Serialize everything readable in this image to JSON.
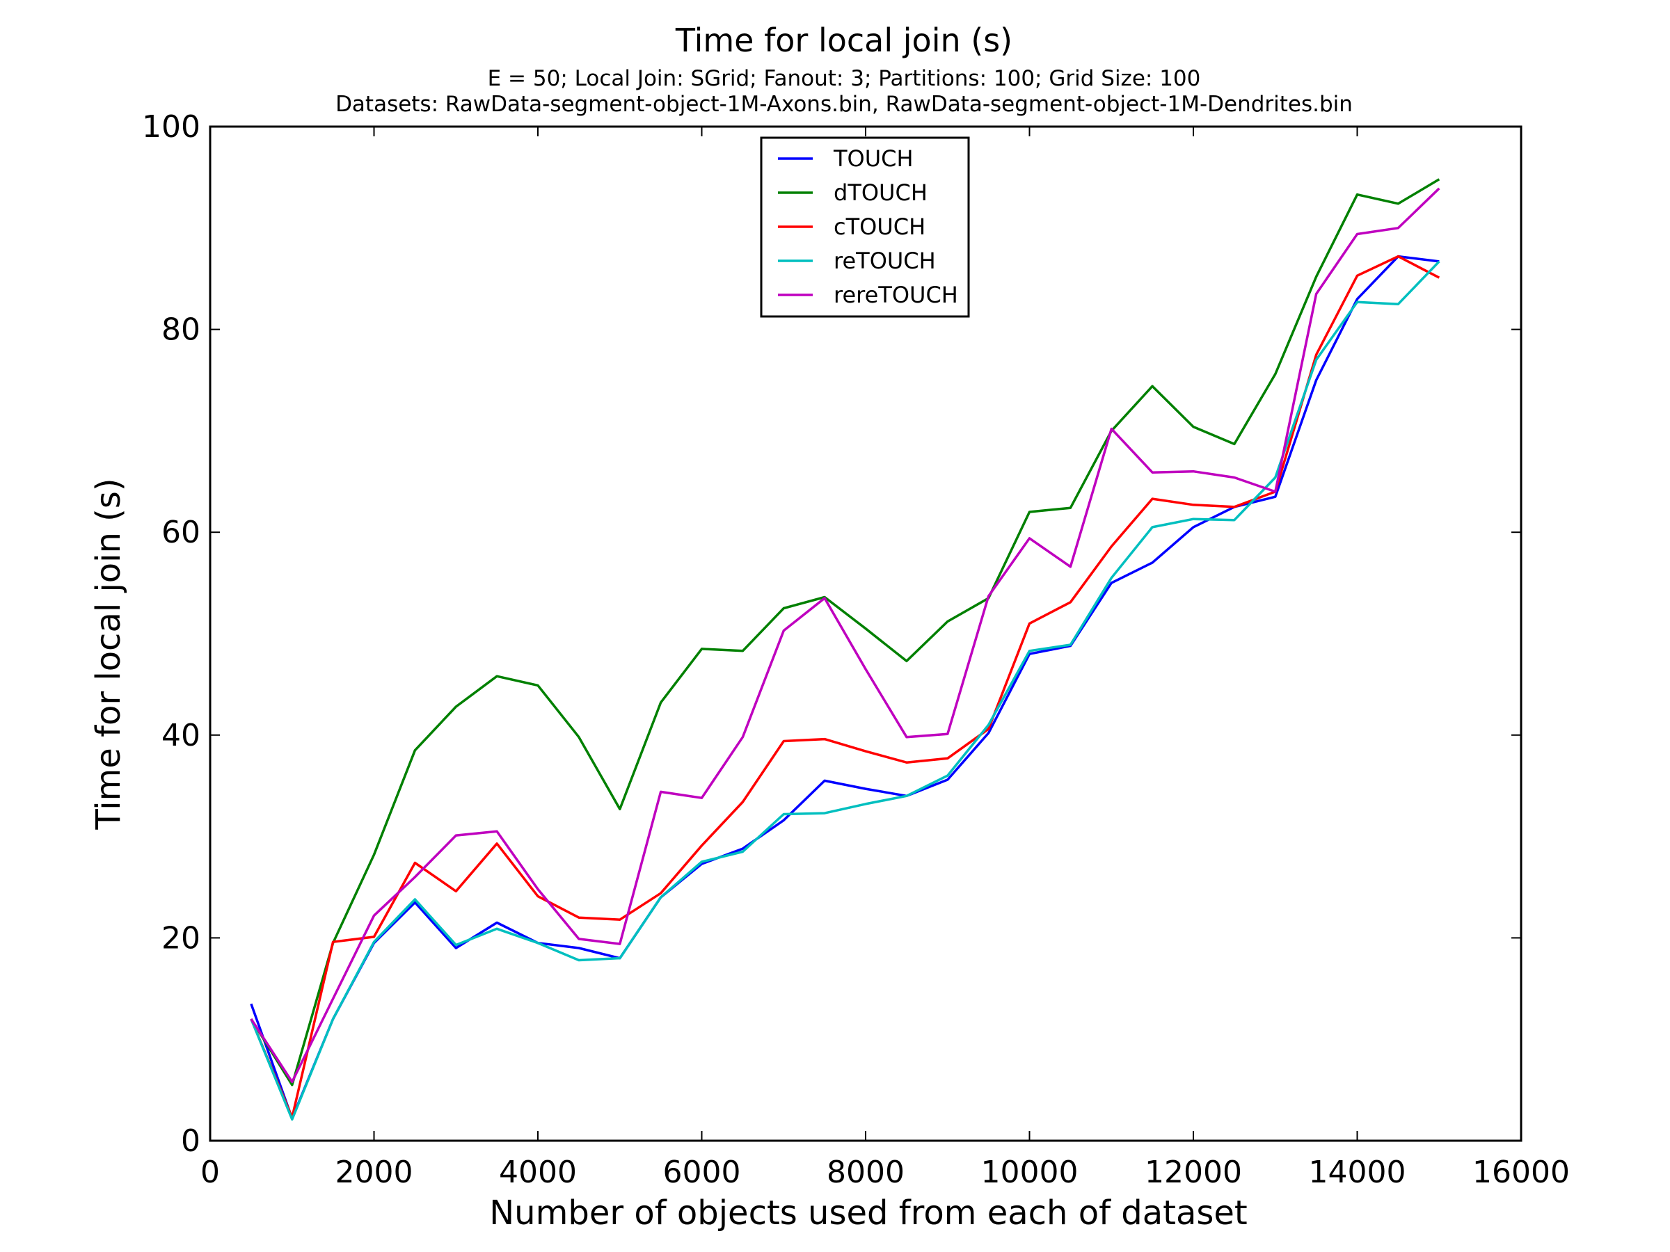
{
  "chart_data": {
    "type": "line",
    "title": "Time for local join (s)",
    "subtitle_lines": [
      "E = 50; Local Join: SGrid; Fanout: 3; Partitions: 100; Grid Size: 100",
      "Datasets: RawData-segment-object-1M-Axons.bin, RawData-segment-object-1M-Dendrites.bin"
    ],
    "xlabel": "Number of objects used from each of dataset",
    "ylabel": "Time for local join (s)",
    "xlim": [
      0,
      16000
    ],
    "ylim": [
      0,
      100
    ],
    "xticks": [
      0,
      2000,
      4000,
      6000,
      8000,
      10000,
      12000,
      14000,
      16000
    ],
    "yticks": [
      0,
      20,
      40,
      60,
      80,
      100
    ],
    "grid": false,
    "legend_position": "top-center",
    "x": [
      500,
      1000,
      1500,
      2000,
      2500,
      3000,
      3500,
      4000,
      4500,
      5000,
      5500,
      6000,
      6500,
      7000,
      7500,
      8000,
      8500,
      9000,
      9500,
      10000,
      10500,
      11000,
      11500,
      12000,
      12500,
      13000,
      13500,
      14000,
      14500,
      15000
    ],
    "series": [
      {
        "name": "TOUCH",
        "color": "#0000ff",
        "values": [
          13.5,
          2.2,
          12,
          19.5,
          23.5,
          19,
          21.5,
          19.5,
          19,
          18,
          24,
          27.3,
          28.8,
          31.6,
          35.5,
          34.7,
          34,
          35.6,
          40.2,
          48,
          48.8,
          55,
          57,
          60.5,
          62.5,
          63.5,
          75,
          83,
          87.2,
          86.7
        ]
      },
      {
        "name": "dTOUCH",
        "color": "#008000",
        "values": [
          12,
          5.5,
          19.5,
          28.2,
          38.5,
          42.8,
          45.8,
          44.9,
          39.8,
          32.7,
          43.2,
          48.5,
          48.3,
          52.5,
          53.6,
          50.5,
          47.3,
          51.2,
          53.5,
          62,
          62.4,
          70,
          74.4,
          70.4,
          68.7,
          75.6,
          85.2,
          93.3,
          92.4,
          94.8
        ]
      },
      {
        "name": "cTOUCH",
        "color": "#ff0000",
        "values": [
          12,
          2.3,
          19.6,
          20.1,
          27.4,
          24.6,
          29.3,
          24.1,
          22,
          21.8,
          24.4,
          29.1,
          33.4,
          39.4,
          39.6,
          38.4,
          37.3,
          37.7,
          40.6,
          51,
          53.1,
          58.6,
          63.3,
          62.7,
          62.5,
          64,
          77.5,
          85.3,
          87.2,
          85.1
        ]
      },
      {
        "name": "reTOUCH",
        "color": "#00bfbf",
        "values": [
          12,
          2.1,
          12,
          19.6,
          23.8,
          19.3,
          20.9,
          19.5,
          17.8,
          18,
          24,
          27.5,
          28.5,
          32.2,
          32.3,
          33.2,
          34,
          36,
          41,
          48.3,
          48.9,
          55.5,
          60.5,
          61.3,
          61.2,
          65.4,
          77,
          82.7,
          82.5,
          86.7
        ]
      },
      {
        "name": "rereTOUCH",
        "color": "#bf00bf",
        "values": [
          12,
          5.8,
          14,
          22.2,
          26,
          30.1,
          30.5,
          24.8,
          19.9,
          19.4,
          34.4,
          33.8,
          39.8,
          50.3,
          53.5,
          46.5,
          39.8,
          40.1,
          53.7,
          59.4,
          56.6,
          70.2,
          65.9,
          66,
          65.4,
          64,
          83.5,
          89.4,
          90,
          93.9
        ]
      }
    ]
  }
}
